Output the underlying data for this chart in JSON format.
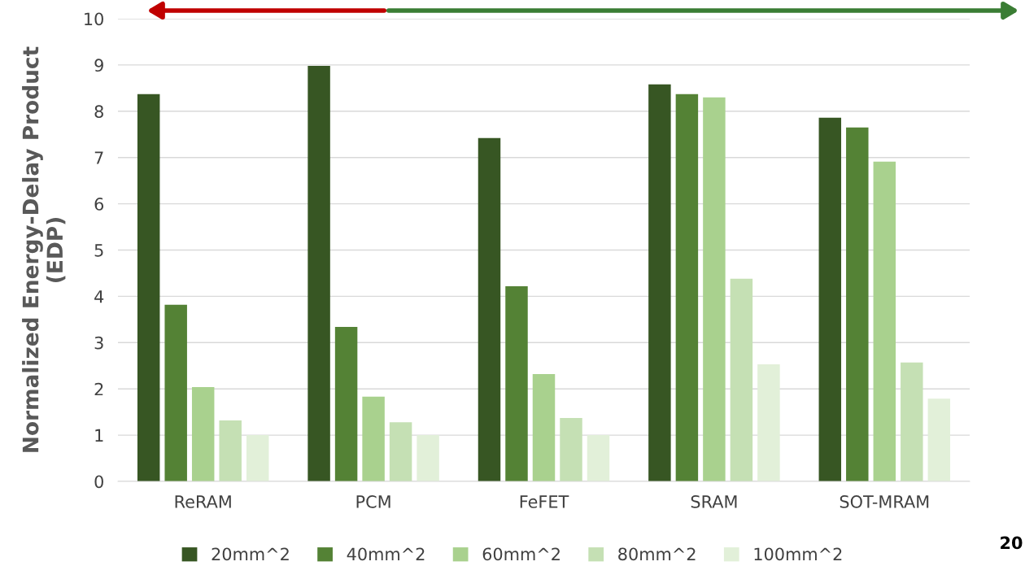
{
  "chart_data": {
    "type": "bar",
    "ylabel": "Normalized Energy-Delay Product\n(EDP)",
    "categories": [
      "ReRAM",
      "PCM",
      "FeFET",
      "SRAM",
      "SOT-MRAM"
    ],
    "series": [
      {
        "name": "20mm^2",
        "color": "#375623",
        "values": [
          8.37,
          8.98,
          7.42,
          8.58,
          7.86
        ]
      },
      {
        "name": "40mm^2",
        "color": "#548235",
        "values": [
          3.82,
          3.34,
          4.22,
          8.37,
          7.65
        ]
      },
      {
        "name": "60mm^2",
        "color": "#a9d18e",
        "values": [
          2.04,
          1.83,
          2.32,
          8.3,
          6.91
        ]
      },
      {
        "name": "80mm^2",
        "color": "#c5e0b4",
        "values": [
          1.32,
          1.28,
          1.37,
          4.38,
          2.57
        ]
      },
      {
        "name": "100mm^2",
        "color": "#e2f0d9",
        "values": [
          1.0,
          1.0,
          1.0,
          2.53,
          1.79
        ]
      }
    ],
    "ylim": [
      0,
      10
    ],
    "yticks": [
      0,
      1,
      2,
      3,
      4,
      5,
      6,
      7,
      8,
      9,
      10
    ],
    "grid": "y",
    "legend": "bottom",
    "annotations": [
      "20"
    ]
  }
}
